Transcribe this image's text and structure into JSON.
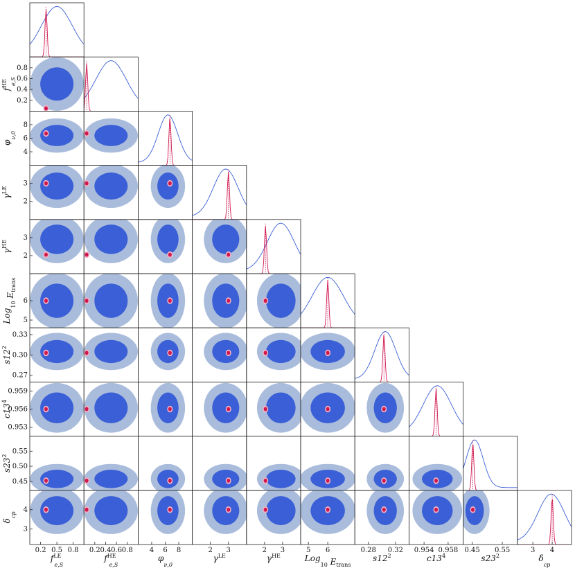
{
  "chart_data": {
    "type": "corner",
    "parameters": [
      {
        "name": "f_{e,S}^{LE}",
        "label": "f",
        "sup": "LE",
        "sub": "e,S",
        "range": [
          0,
          1
        ],
        "ticks": [
          0.2,
          0.5,
          0.8
        ],
        "tick_labels": [
          "0.2",
          "0.5",
          "0.8"
        ]
      },
      {
        "name": "f_{e,S}^{HE}",
        "label": "f",
        "sup": "HE",
        "sub": "e,S",
        "range": [
          0,
          1
        ],
        "ticks": [
          0.2,
          0.4,
          0.6,
          0.8
        ],
        "tick_labels": [
          "0.2",
          "0.4",
          "0.6",
          "0.8"
        ]
      },
      {
        "name": "phi_{v,0}",
        "label": "φ",
        "sup": "",
        "sub": "ν,0",
        "range": [
          2,
          10
        ],
        "ticks": [
          4,
          6,
          8
        ],
        "tick_labels": [
          "4",
          "6",
          "8"
        ]
      },
      {
        "name": "gamma^{LE}",
        "label": "γ",
        "sup": "LE",
        "sub": "",
        "range": [
          1,
          4
        ],
        "ticks": [
          2,
          3
        ],
        "tick_labels": [
          "2",
          "3"
        ]
      },
      {
        "name": "gamma^{HE}",
        "label": "γ",
        "sup": "HE",
        "sub": "",
        "range": [
          1,
          4
        ],
        "ticks": [
          2,
          3
        ],
        "tick_labels": [
          "2",
          "3"
        ]
      },
      {
        "name": "Log10 E_trans",
        "label": "Log",
        "sup": "",
        "sub": "10",
        "suffix": " E",
        "suffix_sub": "trans",
        "range": [
          4.6,
          7.4
        ],
        "ticks": [
          5,
          6
        ],
        "tick_labels": [
          "5",
          "6"
        ]
      },
      {
        "name": "s12^2",
        "label": "s12",
        "sup": "2",
        "sub": "",
        "range": [
          0.26,
          0.34
        ],
        "ticks": [
          0.27,
          0.3,
          0.33
        ],
        "tick_labels": [
          "0.27",
          "0.30",
          "0.33"
        ],
        "x_ticks": [
          0.28,
          0.32
        ],
        "x_tick_labels": [
          "0.28",
          "0.32"
        ]
      },
      {
        "name": "c13^4",
        "label": "c13",
        "sup": "4",
        "sub": "",
        "range": [
          0.9515,
          0.9605
        ],
        "ticks": [
          0.953,
          0.956,
          0.959
        ],
        "tick_labels": [
          "0.953",
          "0.956",
          "0.959"
        ],
        "x_ticks": [
          0.954,
          0.958
        ],
        "x_tick_labels": [
          "0.954",
          "0.958"
        ]
      },
      {
        "name": "s23^2",
        "label": "s23",
        "sup": "2",
        "sub": "",
        "range": [
          0.42,
          0.6
        ],
        "ticks": [
          0.45,
          0.5,
          0.55
        ],
        "tick_labels": [
          "0.45",
          "0.50",
          "0.55"
        ],
        "x_ticks": [
          0.45,
          0.55
        ],
        "x_tick_labels": [
          "0.45",
          "0.55"
        ]
      },
      {
        "name": "delta_cp",
        "label": "δ",
        "sup": "",
        "sub": "cp",
        "range": [
          2.2,
          5.0
        ],
        "ticks": [
          3,
          4
        ],
        "tick_labels": [
          "3",
          "4"
        ]
      }
    ],
    "best_fit": [
      0.3,
      0.05,
      6.7,
      3.0,
      2.05,
      6.0,
      0.303,
      0.956,
      0.452,
      4.0
    ],
    "wide_centers": [
      0.5,
      0.5,
      6.4,
      2.85,
      2.9,
      6.0,
      0.305,
      0.9562,
      0.458,
      3.95
    ],
    "wide_widths": [
      0.9,
      0.9,
      4.6,
      2.2,
      2.4,
      2.6,
      0.05,
      0.0075,
      0.09,
      2.2
    ],
    "series": [
      {
        "name": "blue-posterior",
        "color": "#3a5fd6",
        "light": "#a9bcdc"
      },
      {
        "name": "red-posterior",
        "color": "#d0164f",
        "light": "#f2b4c4"
      }
    ]
  }
}
